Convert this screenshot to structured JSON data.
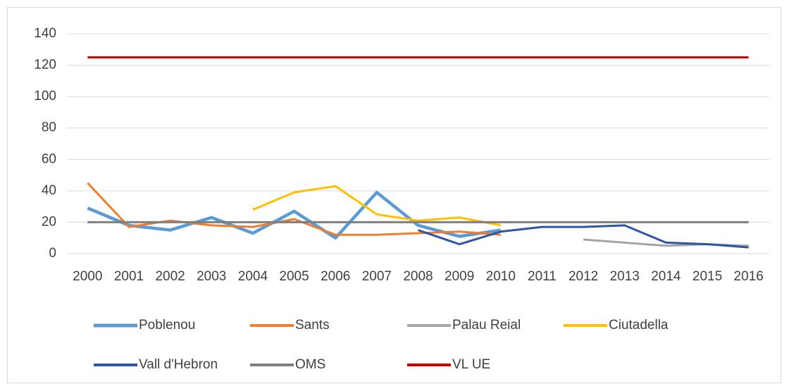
{
  "chart_data": {
    "type": "line",
    "categories": [
      "2000",
      "2001",
      "2002",
      "2003",
      "2004",
      "2005",
      "2006",
      "2007",
      "2008",
      "2009",
      "2010",
      "2011",
      "2012",
      "2013",
      "2014",
      "2015",
      "2016"
    ],
    "series": [
      {
        "name": "Poblenou",
        "color": "#5b9bd5",
        "values": [
          29,
          18,
          15,
          23,
          13,
          27,
          10,
          39,
          18,
          11,
          15,
          null,
          null,
          null,
          null,
          null,
          null
        ]
      },
      {
        "name": "Sants",
        "color": "#ed7d31",
        "values": [
          45,
          17,
          21,
          18,
          17,
          22,
          12,
          12,
          13,
          14,
          12,
          null,
          null,
          null,
          null,
          null,
          null
        ]
      },
      {
        "name": "Palau Reial",
        "color": "#a5a5a5",
        "values": [
          null,
          null,
          null,
          null,
          null,
          null,
          null,
          null,
          null,
          null,
          null,
          null,
          9,
          7,
          5,
          6,
          5
        ]
      },
      {
        "name": "Ciutadella",
        "color": "#ffc000",
        "values": [
          null,
          null,
          null,
          null,
          28,
          39,
          43,
          25,
          21,
          23,
          18,
          null,
          null,
          null,
          null,
          null,
          null
        ]
      },
      {
        "name": "Vall d'Hebron",
        "color": "#2f55a4",
        "values": [
          null,
          null,
          null,
          null,
          null,
          null,
          null,
          null,
          15,
          6,
          14,
          17,
          17,
          18,
          7,
          6,
          4
        ]
      },
      {
        "name": "OMS",
        "color": "#7f7f7f",
        "values": [
          20,
          20,
          20,
          20,
          20,
          20,
          20,
          20,
          20,
          20,
          20,
          20,
          20,
          20,
          20,
          20,
          20
        ]
      },
      {
        "name": "VL UE",
        "color": "#c00000",
        "values": [
          125,
          125,
          125,
          125,
          125,
          125,
          125,
          125,
          125,
          125,
          125,
          125,
          125,
          125,
          125,
          125,
          125
        ]
      }
    ],
    "ylim": [
      0,
      140
    ],
    "yticks": [
      0,
      20,
      40,
      60,
      80,
      100,
      120,
      140
    ],
    "grid": true,
    "legend": "bottom"
  }
}
